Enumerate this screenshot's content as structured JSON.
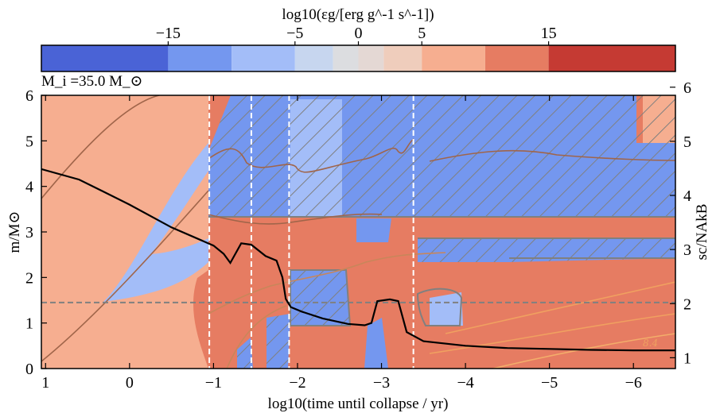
{
  "chart_data": {
    "type": "heatmap",
    "panel_label": "M_i =35.0 M_⊙",
    "colorbar": {
      "label": "log10(εg/[erg g^-1 s^-1])",
      "range": [
        -25,
        25
      ],
      "ticks": [
        -15,
        -5,
        0,
        5,
        15
      ],
      "tick_labels": [
        "−15",
        "−5",
        "0",
        "5",
        "15"
      ],
      "boundaries": [
        -25,
        -15,
        -10,
        -5,
        -2,
        0,
        2,
        5,
        10,
        15,
        25
      ],
      "colors": [
        "#4a63d6",
        "#7497ef",
        "#a3bdf8",
        "#c7d6ef",
        "#dcdde0",
        "#e4d8d4",
        "#efcdbc",
        "#f6ae90",
        "#e67c62",
        "#c53a33"
      ]
    },
    "xaxis": {
      "label": "log10(time until collapse / yr)",
      "range": [
        1.05,
        -6.5
      ],
      "ticks": [
        1,
        0,
        -1,
        -2,
        -3,
        -4,
        -5,
        -6
      ],
      "tick_labels": [
        "1",
        "0",
        "−1",
        "−2",
        "−3",
        "−4",
        "−5",
        "−6"
      ]
    },
    "yaxis_left": {
      "label": "m/M⊙",
      "range": [
        0,
        6
      ],
      "ticks": [
        0,
        1,
        2,
        3,
        4,
        5,
        6
      ]
    },
    "yaxis_right": {
      "label": "sc/NAkB",
      "range": [
        0.8,
        5.85
      ],
      "ticks": [
        1,
        2,
        3,
        4,
        5,
        6
      ]
    },
    "vertical_lines_x": [
      -0.95,
      -1.45,
      -1.9,
      -3.38
    ],
    "horizontal_line_y": 1.45,
    "central_entropy": {
      "x": [
        1.05,
        0.6,
        0.0,
        -0.5,
        -0.9,
        -1.0,
        -1.12,
        -1.2,
        -1.33,
        -1.45,
        -1.62,
        -1.75,
        -1.82,
        -1.86,
        -1.92,
        -2.05,
        -2.3,
        -2.6,
        -2.8,
        -2.88,
        -2.95,
        -3.1,
        -3.2,
        -3.3,
        -3.5,
        -4.0,
        -4.5,
        -5.0,
        -5.5,
        -6.0,
        -6.5
      ],
      "y": [
        4.38,
        4.15,
        3.6,
        3.1,
        2.78,
        2.7,
        2.52,
        2.32,
        2.75,
        2.72,
        2.47,
        2.37,
        2.0,
        1.53,
        1.35,
        1.25,
        1.1,
        0.98,
        0.95,
        1.0,
        1.48,
        1.52,
        1.48,
        0.8,
        0.6,
        0.5,
        0.45,
        0.43,
        0.41,
        0.4,
        0.4
      ]
    },
    "annotations": [
      "8.4"
    ]
  }
}
